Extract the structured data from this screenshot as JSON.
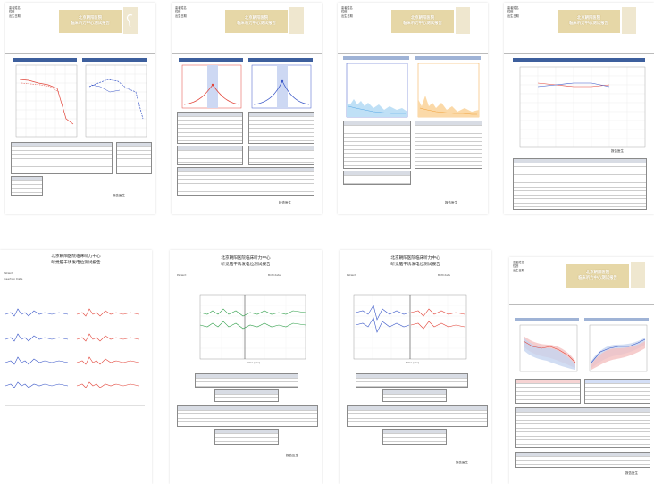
{
  "report": {
    "hospital_line1": "北京朝阳医院",
    "hospital_line2": "临床听力中心测试报告",
    "serif_line1": "北京朝阳医院临床听力中心",
    "serif_line2": "听觉脑干诱发电位测试报告",
    "serif_line1b": "北京朝阳医院临床听力中心",
    "serif_line2b": "听觉脑干诱发电位测试报告",
    "meta_name": "患者姓名",
    "meta_sex": "性别",
    "meta_date": "出生日期",
    "signature": "报告医生",
    "signature_alt": "检查医生",
    "patient_label": "Patient",
    "birthdate_label": "Birthdate",
    "inst_label": "Insertion Date",
    "axis_hz": "频率 (Hz)",
    "axis_ms": "Time (ms)"
  },
  "colors": {
    "accent": "#e6d7a7",
    "right_ear": "#e2453a",
    "left_ear": "#3a57c8",
    "wave_green": "#2e9e48",
    "dpoae_blue": "#59a9e6",
    "dpoae_orange": "#f2a23a",
    "table_bar": "#3d5f9d"
  }
}
